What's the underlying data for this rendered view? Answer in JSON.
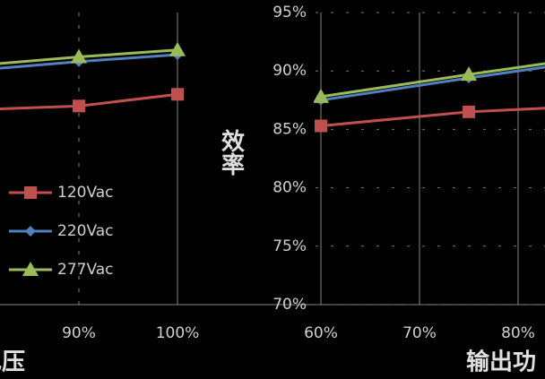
{
  "chart_data": [
    {
      "type": "line",
      "xlabel": "电压",
      "legend": "left",
      "grid": true,
      "x": [
        80,
        90,
        100
      ],
      "xlim": [
        82,
        101
      ],
      "ylim": [
        70,
        95
      ],
      "xticks": [
        {
          "value": 90,
          "label": "90%"
        },
        {
          "value": 100,
          "label": "100%"
        }
      ],
      "series": [
        {
          "name": "120Vac",
          "color": "#c0504d",
          "marker": "square",
          "values": [
            86.7,
            87.0,
            88.0
          ]
        },
        {
          "name": "220Vac",
          "color": "#4f81bd",
          "marker": "diamond",
          "values": [
            90.1,
            90.8,
            91.4
          ]
        },
        {
          "name": "277Vac",
          "color": "#9bbb59",
          "marker": "triangle",
          "values": [
            90.5,
            91.2,
            91.8
          ]
        }
      ]
    },
    {
      "type": "line",
      "xlabel": "输出功",
      "ylabel": "效率",
      "grid": true,
      "x": [
        60,
        75,
        85
      ],
      "xlim": [
        60,
        82
      ],
      "ylim": [
        70,
        95
      ],
      "xticks": [
        {
          "value": 60,
          "label": "60%"
        },
        {
          "value": 70,
          "label": "70%"
        },
        {
          "value": 80,
          "label": "80%"
        }
      ],
      "yticks": [
        {
          "value": 70,
          "label": "70%"
        },
        {
          "value": 75,
          "label": "75%"
        },
        {
          "value": 80,
          "label": "80%"
        },
        {
          "value": 85,
          "label": "85%"
        },
        {
          "value": 90,
          "label": "90%"
        },
        {
          "value": 95,
          "label": "95%"
        }
      ],
      "series": [
        {
          "name": "120Vac",
          "color": "#c0504d",
          "marker": "square",
          "values": [
            85.3,
            86.5,
            86.9
          ]
        },
        {
          "name": "220Vac",
          "color": "#4f81bd",
          "marker": "diamond",
          "values": [
            87.5,
            89.4,
            90.6
          ]
        },
        {
          "name": "277Vac",
          "color": "#9bbb59",
          "marker": "triangle",
          "values": [
            87.8,
            89.7,
            90.9
          ]
        }
      ]
    }
  ]
}
